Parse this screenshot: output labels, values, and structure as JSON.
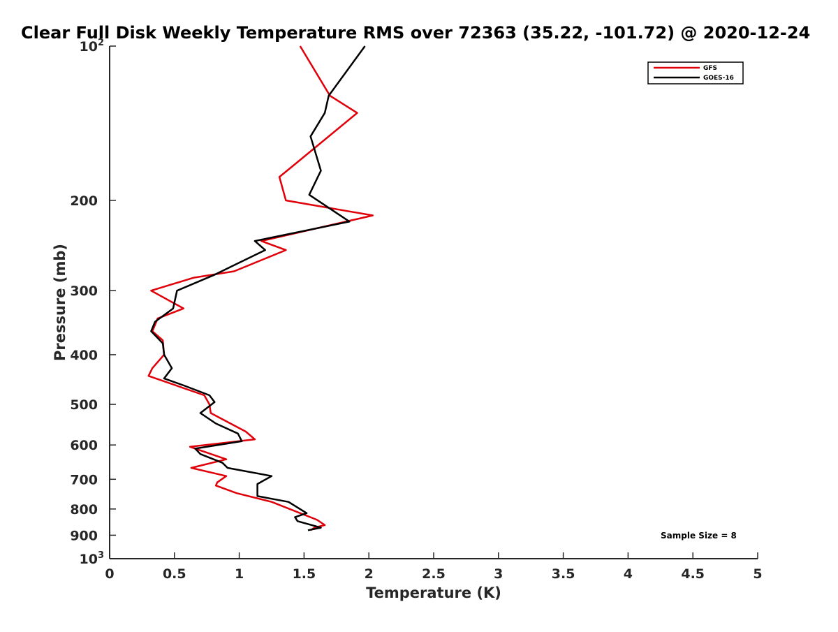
{
  "chart_data": {
    "type": "line",
    "title": "Clear Full Disk Weekly Temperature RMS over 72363 (35.22, -101.72) @ 2020-12-24",
    "xlabel": "Temperature (K)",
    "ylabel": "Pressure (mb)",
    "xlim": [
      0,
      5
    ],
    "ylim": [
      100,
      1000
    ],
    "y_scale": "log",
    "y_reversed": true,
    "grid": false,
    "legend_position": "top-right",
    "x_ticks": [
      "0",
      "0.5",
      "1",
      "1.5",
      "2",
      "2.5",
      "3",
      "3.5",
      "4",
      "4.5",
      "5"
    ],
    "y_ticks": [
      {
        "value": 100,
        "base": "10",
        "exp": "2"
      },
      {
        "value": 200,
        "label": "200"
      },
      {
        "value": 300,
        "label": "300"
      },
      {
        "value": 400,
        "label": "400"
      },
      {
        "value": 500,
        "label": "500"
      },
      {
        "value": 600,
        "label": "600"
      },
      {
        "value": 700,
        "label": "700"
      },
      {
        "value": 800,
        "label": "800"
      },
      {
        "value": 900,
        "label": "900"
      },
      {
        "value": 1000,
        "base": "10",
        "exp": "3"
      }
    ],
    "annotation": "Sample Size = 8",
    "series": [
      {
        "name": "GFS",
        "color": "#e0000a",
        "points": [
          [
            1.47,
            100
          ],
          [
            1.7,
            125
          ],
          [
            1.91,
            135
          ],
          [
            1.43,
            170
          ],
          [
            1.31,
            180
          ],
          [
            1.36,
            200
          ],
          [
            2.03,
            214
          ],
          [
            1.17,
            240
          ],
          [
            1.36,
            250
          ],
          [
            0.96,
            275
          ],
          [
            0.65,
            283
          ],
          [
            0.32,
            300
          ],
          [
            0.57,
            325
          ],
          [
            0.37,
            340
          ],
          [
            0.33,
            360
          ],
          [
            0.41,
            375
          ],
          [
            0.42,
            400
          ],
          [
            0.33,
            425
          ],
          [
            0.3,
            440
          ],
          [
            0.73,
            480
          ],
          [
            0.77,
            500
          ],
          [
            0.78,
            520
          ],
          [
            1.05,
            565
          ],
          [
            1.12,
            585
          ],
          [
            0.62,
            605
          ],
          [
            0.9,
            640
          ],
          [
            0.63,
            665
          ],
          [
            0.9,
            690
          ],
          [
            0.83,
            710
          ],
          [
            0.82,
            720
          ],
          [
            0.98,
            745
          ],
          [
            1.25,
            775
          ],
          [
            1.6,
            840
          ],
          [
            1.66,
            860
          ],
          [
            1.58,
            870
          ],
          [
            1.55,
            880
          ]
        ]
      },
      {
        "name": "GOES-16",
        "color": "#000000",
        "points": [
          [
            1.97,
            100
          ],
          [
            1.69,
            125
          ],
          [
            1.66,
            135
          ],
          [
            1.55,
            150
          ],
          [
            1.63,
            175
          ],
          [
            1.54,
            195
          ],
          [
            1.85,
            220
          ],
          [
            1.12,
            240
          ],
          [
            1.2,
            250
          ],
          [
            0.8,
            280
          ],
          [
            0.52,
            300
          ],
          [
            0.49,
            325
          ],
          [
            0.35,
            345
          ],
          [
            0.32,
            360
          ],
          [
            0.41,
            380
          ],
          [
            0.42,
            400
          ],
          [
            0.48,
            425
          ],
          [
            0.42,
            445
          ],
          [
            0.58,
            460
          ],
          [
            0.77,
            480
          ],
          [
            0.81,
            495
          ],
          [
            0.7,
            520
          ],
          [
            0.82,
            545
          ],
          [
            0.99,
            570
          ],
          [
            1.02,
            590
          ],
          [
            0.66,
            610
          ],
          [
            0.7,
            625
          ],
          [
            0.87,
            650
          ],
          [
            0.91,
            665
          ],
          [
            1.25,
            690
          ],
          [
            1.14,
            715
          ],
          [
            1.14,
            755
          ],
          [
            1.38,
            775
          ],
          [
            1.52,
            815
          ],
          [
            1.43,
            830
          ],
          [
            1.45,
            845
          ],
          [
            1.63,
            870
          ],
          [
            1.53,
            880
          ]
        ]
      }
    ]
  }
}
